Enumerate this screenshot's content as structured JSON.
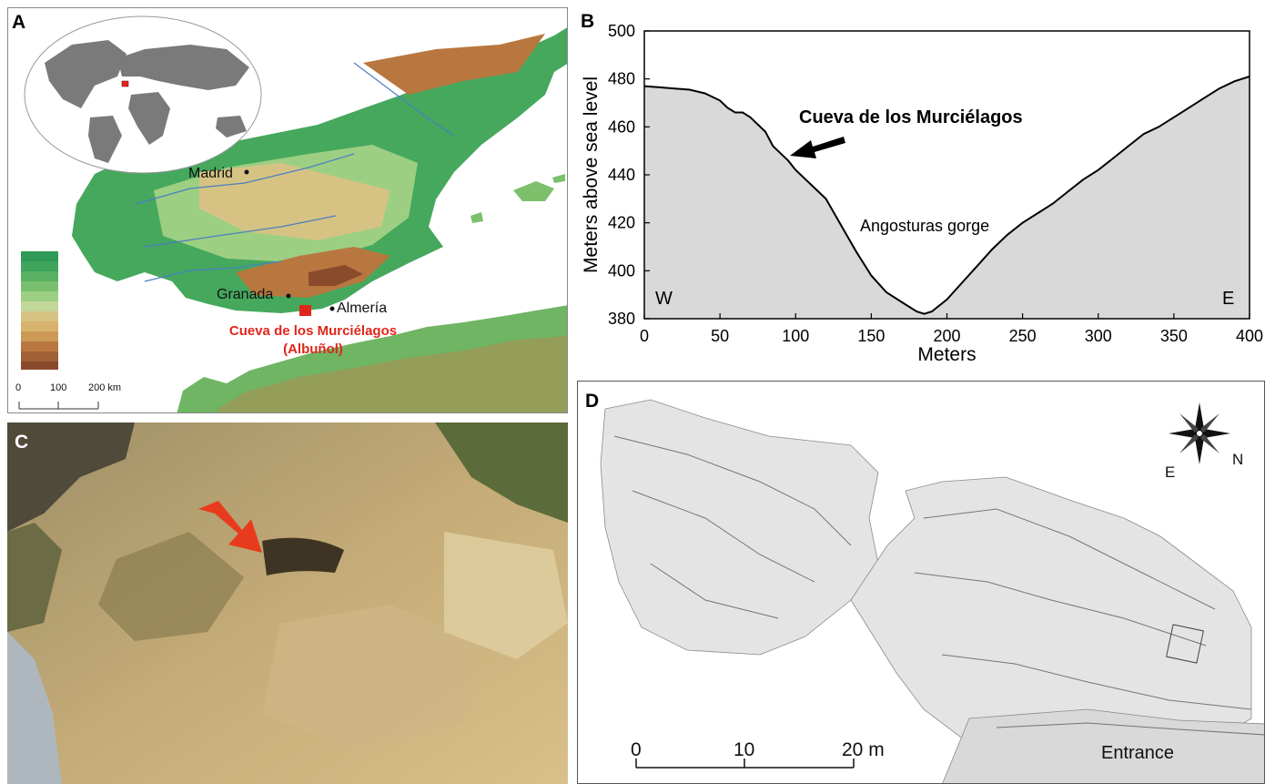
{
  "panels": {
    "a": {
      "letter": "A",
      "cities": [
        {
          "name": "Madrid"
        },
        {
          "name": "Granada"
        },
        {
          "name": "Almería"
        }
      ],
      "site_label": [
        "Cueva de los Murciélagos",
        "(Albuñol)"
      ],
      "scale_labels": [
        "0",
        "100",
        "200 km"
      ],
      "colors": {
        "sea": "#ffffff",
        "lowland": "#2e9a55",
        "plain": "#8fcf7a",
        "upland": "#d8c07a",
        "mountain": "#b8773f",
        "peak": "#8a4a2c",
        "site_marker": "#e0261b",
        "globe_land": "#7a7a7a"
      }
    },
    "b": {
      "letter": "B",
      "annotations": {
        "cave": "Cueva de los Murciélagos",
        "gorge": "Angosturas gorge",
        "west": "W",
        "east": "E"
      }
    },
    "c": {
      "letter": "C",
      "colors": {
        "arrow": "#e83b1e"
      }
    },
    "d": {
      "letter": "D",
      "compass": {
        "east": "E",
        "north": "N"
      },
      "scale_labels": [
        "0",
        "10",
        "20 m"
      ],
      "entrance_label": "Entrance"
    }
  },
  "chart_data": {
    "type": "area",
    "title": "",
    "xlabel": "Meters",
    "ylabel": "Meters above sea level",
    "xlim": [
      0,
      400
    ],
    "ylim": [
      380,
      500
    ],
    "xticks": [
      0,
      50,
      100,
      150,
      200,
      250,
      300,
      350,
      400
    ],
    "yticks": [
      380,
      400,
      420,
      440,
      460,
      480,
      500
    ],
    "grid": false,
    "fill_color": "#d9d9d9",
    "series": [
      {
        "x": [
          0,
          10,
          20,
          30,
          40,
          50,
          55,
          60,
          65,
          70,
          80,
          85,
          90,
          95,
          100,
          110,
          120,
          130,
          140,
          150,
          160,
          170,
          180,
          185,
          190,
          200,
          210,
          220,
          230,
          240,
          250,
          260,
          270,
          280,
          290,
          300,
          310,
          320,
          330,
          340,
          350,
          360,
          370,
          380,
          390,
          400
        ],
        "y": [
          477,
          476.5,
          476,
          475.5,
          474,
          471,
          468,
          466,
          466,
          464,
          458,
          452,
          449,
          446,
          442,
          436,
          430,
          419,
          408,
          398,
          391,
          387,
          383,
          382,
          383,
          388,
          395,
          402,
          409,
          415,
          420,
          424,
          428,
          433,
          438,
          442,
          447,
          452,
          457,
          460,
          464,
          468,
          472,
          476,
          479,
          481
        ]
      }
    ]
  }
}
